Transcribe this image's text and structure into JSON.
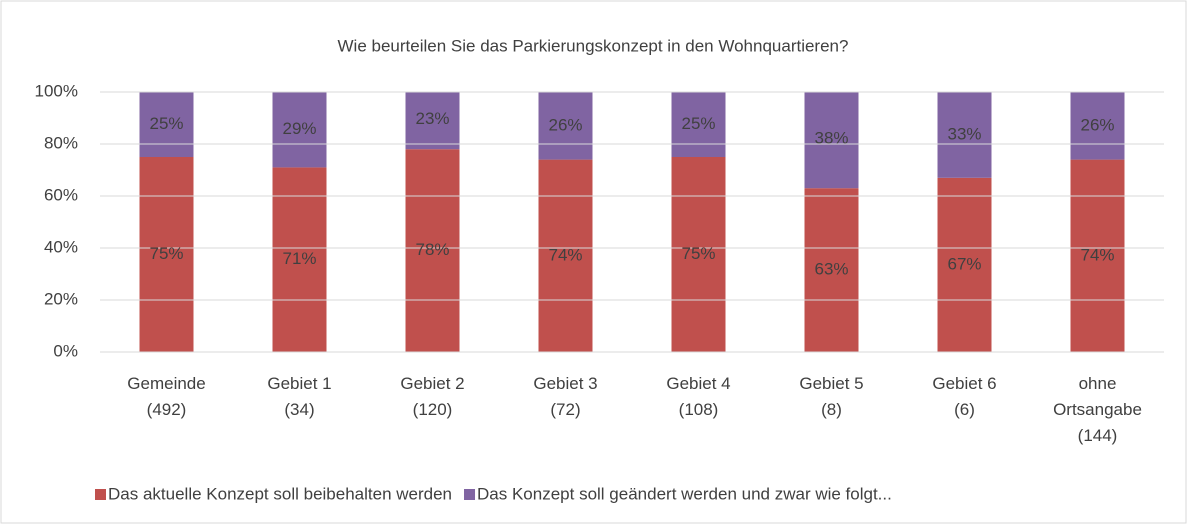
{
  "chart_data": {
    "type": "bar",
    "stacked": true,
    "title": "Wie beurteilen Sie das Parkierungskonzept in den Wohnquartieren?",
    "categories": [
      "Gemeinde\n(492)",
      "Gebiet 1\n(34)",
      "Gebiet 2\n(120)",
      "Gebiet 3\n(72)",
      "Gebiet 4\n(108)",
      "Gebiet 5\n(8)",
      "Gebiet 6\n(6)",
      "ohne\nOrtsangabe\n(144)"
    ],
    "series": [
      {
        "name": "Das aktuelle Konzept soll beibehalten werden",
        "color": "#c0504d",
        "values": [
          75,
          71,
          78,
          74,
          75,
          63,
          67,
          74
        ],
        "value_labels": [
          "75%",
          "71%",
          "78%",
          "74%",
          "75%",
          "63%",
          "67%",
          "74%"
        ]
      },
      {
        "name": "Das Konzept soll geändert werden und zwar wie folgt...",
        "color": "#8064a2",
        "values": [
          25,
          29,
          23,
          26,
          25,
          38,
          33,
          26
        ],
        "value_labels": [
          "25%",
          "29%",
          "23%",
          "26%",
          "25%",
          "38%",
          "33%",
          "26%"
        ]
      }
    ],
    "ylim": [
      0,
      100
    ],
    "yticks": [
      {
        "value": 0,
        "label": "0%"
      },
      {
        "value": 20,
        "label": "20%"
      },
      {
        "value": 40,
        "label": "40%"
      },
      {
        "value": 60,
        "label": "60%"
      },
      {
        "value": 80,
        "label": "80%"
      },
      {
        "value": 100,
        "label": "100%"
      }
    ],
    "grid": true,
    "legend": "bottom"
  }
}
